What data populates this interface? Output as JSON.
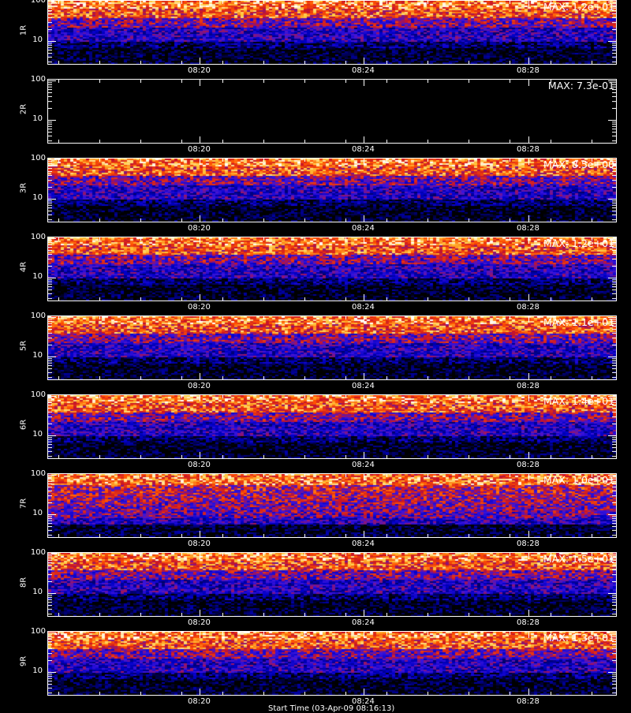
{
  "chart_data": {
    "type": "heatmap",
    "x_axis": {
      "tick_labels": [
        "08:20",
        "08:24",
        "08:28"
      ]
    },
    "y_axis": {
      "scale": "log",
      "tick_labels": [
        "100",
        "10"
      ]
    },
    "colormap": "black-blue-red-yellow-white",
    "panels": [
      {
        "ylabel": "1R",
        "max_label": "MAX: 1.2e+01",
        "band": "high"
      },
      {
        "ylabel": "2R",
        "max_label": "MAX: 7.3e-01",
        "band": "empty"
      },
      {
        "ylabel": "3R",
        "max_label": "MAX: 8.5e+00",
        "band": "high"
      },
      {
        "ylabel": "4R",
        "max_label": "MAX: 1.2e+01",
        "band": "high"
      },
      {
        "ylabel": "5R",
        "max_label": "MAX: 1.1e+01",
        "band": "high"
      },
      {
        "ylabel": "6R",
        "max_label": "MAX: 1.4e+01",
        "band": "high"
      },
      {
        "ylabel": "7R",
        "max_label": "MAX: 1.0e+01",
        "band": "broad"
      },
      {
        "ylabel": "8R",
        "max_label": "MAX: 1.5e+01",
        "band": "high"
      },
      {
        "ylabel": "9R",
        "max_label": "MAX: 1.3e+01",
        "band": "high"
      }
    ],
    "footer": "Start Time (03-Apr-09 08:16:13)"
  }
}
